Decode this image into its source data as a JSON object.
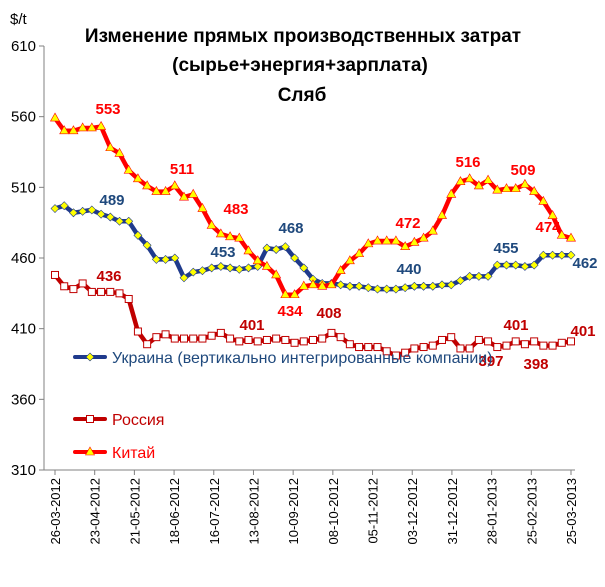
{
  "chart_data": {
    "type": "line",
    "title": [
      "Изменение прямых производственных затрат",
      "(сырье+энергия+зарплата)",
      "Сляб"
    ],
    "unit": "$/t",
    "ylim": [
      310,
      610
    ],
    "yticks": [
      310,
      360,
      410,
      460,
      510,
      560,
      610
    ],
    "grid": false,
    "xtick_labels": [
      "26-03-2012",
      "23-04-2012",
      "21-05-2012",
      "18-06-2012",
      "16-07-2012",
      "13-08-2012",
      "10-09-2012",
      "08-10-2012",
      "05-11-2012",
      "03-12-2012",
      "31-12-2012",
      "28-01-2013",
      "25-02-2013",
      "25-03-2013"
    ],
    "series": [
      {
        "name": "Украина (вертикально интегрированные компании)",
        "color": "#1f3a8c",
        "marker": "diamond",
        "marker_color": "#ffff00",
        "label_color": "#1f497d",
        "values": [
          495,
          497,
          492,
          493,
          494,
          491,
          489,
          486,
          486,
          476,
          469,
          459,
          459,
          460,
          446,
          450,
          451,
          453,
          454,
          453,
          452,
          453,
          454,
          467,
          466,
          468,
          460,
          453,
          445,
          442,
          442,
          441,
          440,
          440,
          439,
          438,
          438,
          438,
          439,
          440,
          440,
          440,
          441,
          441,
          444,
          447,
          447,
          447,
          455,
          455,
          455,
          454,
          455,
          462,
          462,
          462,
          462
        ]
      },
      {
        "name": "Россия",
        "color": "#c00000",
        "marker": "square",
        "marker_color": "#ffffff",
        "label_color": "#c00000",
        "values": [
          448,
          440,
          438,
          442,
          436,
          436,
          436,
          435,
          431,
          408,
          399,
          404,
          406,
          403,
          403,
          403,
          403,
          405,
          407,
          403,
          401,
          402,
          401,
          402,
          403,
          402,
          400,
          401,
          402,
          403,
          407,
          404,
          399,
          397,
          397,
          397,
          394,
          391,
          393,
          396,
          397,
          398,
          402,
          404,
          396,
          396,
          402,
          401,
          397,
          398,
          401,
          399,
          401,
          398,
          398,
          400,
          401
        ]
      },
      {
        "name": "Китай",
        "color": "#ff0000",
        "marker": "triangle",
        "marker_color": "#ffff00",
        "label_color": "#ff0000",
        "values": [
          559,
          550,
          550,
          552,
          552,
          553,
          538,
          534,
          522,
          516,
          511,
          507,
          507,
          511,
          503,
          505,
          495,
          483,
          477,
          475,
          474,
          465,
          458,
          454,
          448,
          434,
          434,
          440,
          441,
          440,
          441,
          451,
          458,
          463,
          470,
          472,
          472,
          472,
          468,
          471,
          474,
          479,
          490,
          505,
          514,
          516,
          511,
          515,
          508,
          509,
          509,
          512,
          507,
          500,
          490,
          476,
          474
        ]
      }
    ],
    "annotations": [
      {
        "text": "553",
        "series": 2
      },
      {
        "text": "511",
        "series": 2
      },
      {
        "text": "483",
        "series": 2
      },
      {
        "text": "434",
        "series": 2
      },
      {
        "text": "472",
        "series": 2
      },
      {
        "text": "516",
        "series": 2
      },
      {
        "text": "509",
        "series": 2
      },
      {
        "text": "474",
        "series": 2
      },
      {
        "text": "489",
        "series": 0
      },
      {
        "text": "453",
        "series": 0
      },
      {
        "text": "468",
        "series": 0
      },
      {
        "text": "440",
        "series": 0
      },
      {
        "text": "455",
        "series": 0
      },
      {
        "text": "462",
        "series": 0
      },
      {
        "text": "436",
        "series": 1
      },
      {
        "text": "401",
        "series": 1
      },
      {
        "text": "408",
        "series": 1
      },
      {
        "text": "397",
        "series": 1
      },
      {
        "text": "401",
        "series": 1
      },
      {
        "text": "398",
        "series": 1
      },
      {
        "text": "401",
        "series": 1
      }
    ],
    "legend": {
      "placement": "lower-left"
    }
  }
}
